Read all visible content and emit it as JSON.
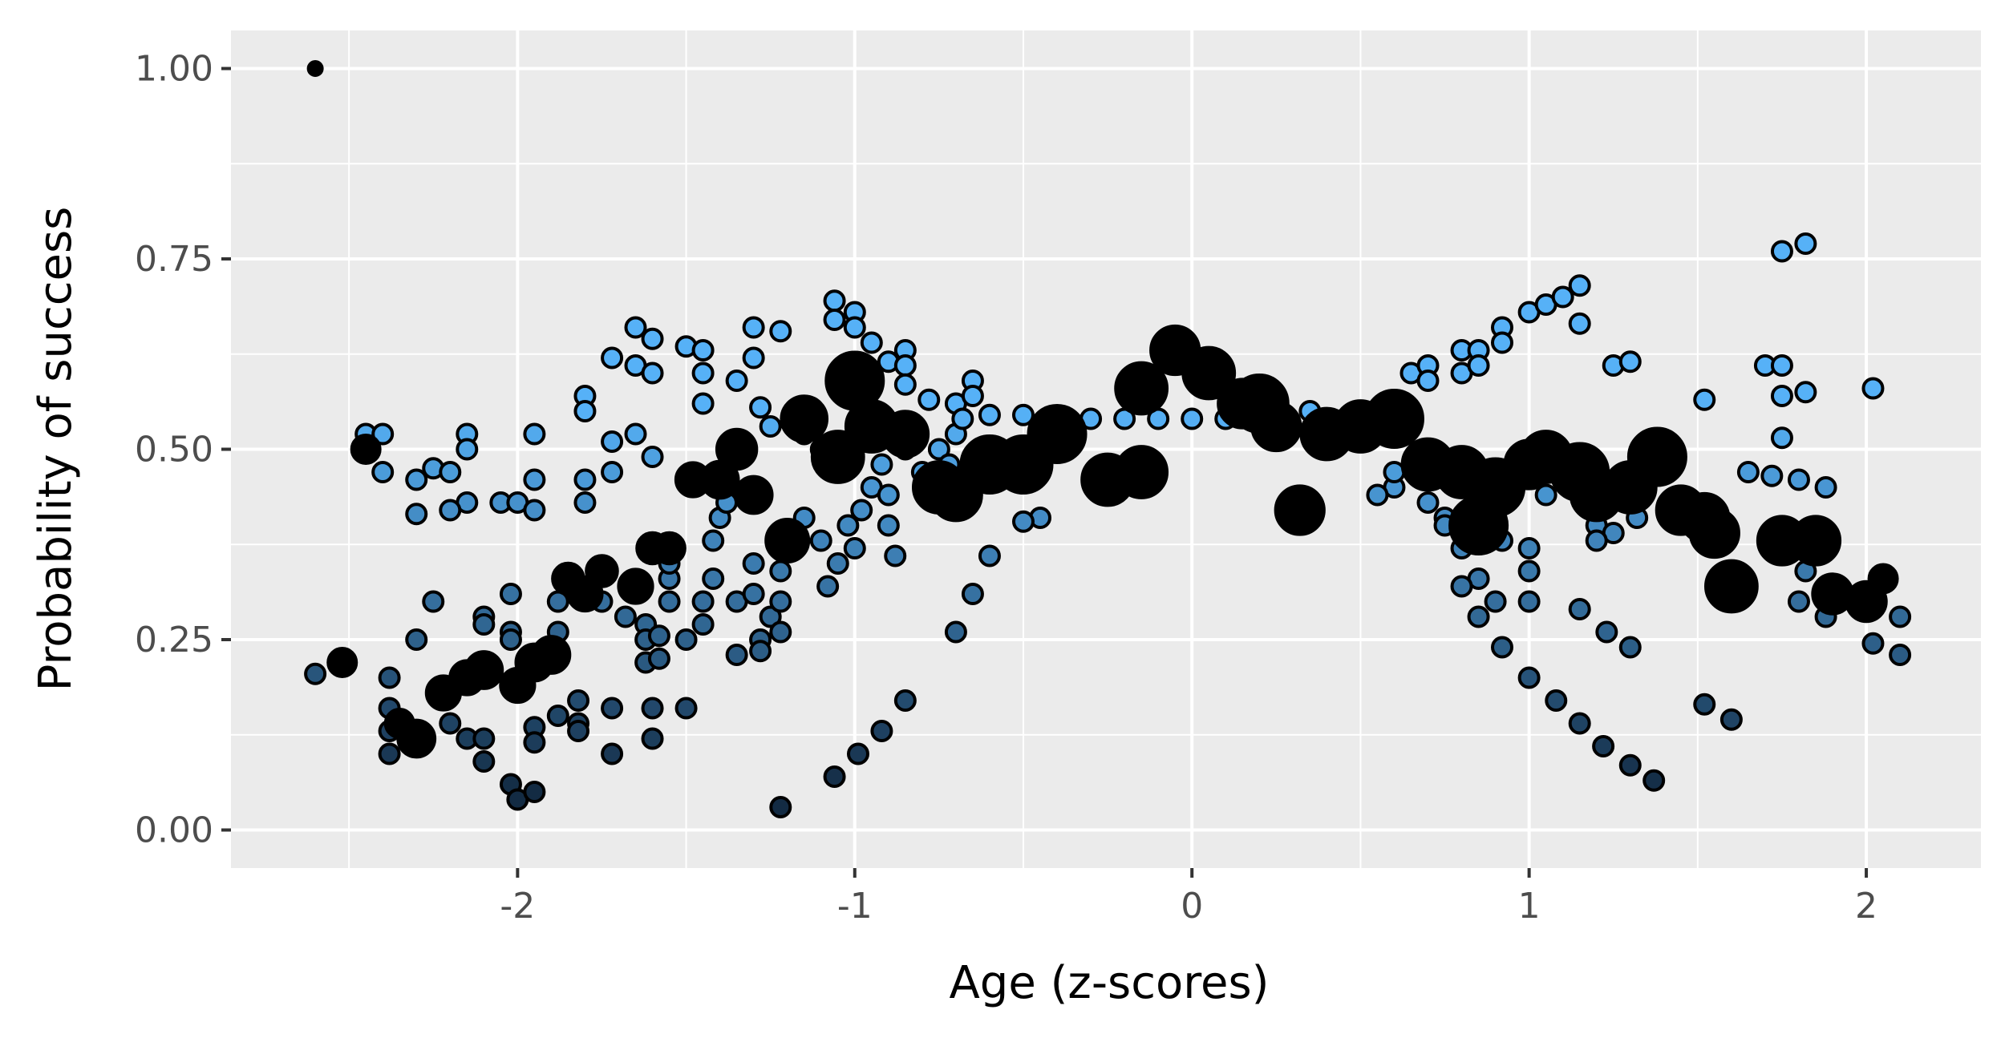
{
  "chart_data": {
    "type": "scatter",
    "title": "",
    "xlabel": "Age (z-scores)",
    "ylabel": "Probability of success",
    "xlim": [
      -2.85,
      2.34
    ],
    "ylim": [
      -0.05,
      1.05
    ],
    "x_ticks": [
      -2,
      -1,
      0,
      1,
      2
    ],
    "x_tick_labels": [
      "-2",
      "-1",
      "0",
      "1",
      "2"
    ],
    "y_ticks": [
      0,
      0.25,
      0.5,
      0.75,
      1.0
    ],
    "y_tick_labels": [
      "0.00",
      "0.25",
      "0.50",
      "0.75",
      "1.00"
    ],
    "grid": true,
    "legend": "none",
    "colors": {
      "panel_background": "#ebebeb",
      "grid": "#ffffff",
      "point_fill_high": "#56b1f7",
      "point_fill_low": "#132b43",
      "point_outline": "#000000",
      "large_points": "#000000"
    },
    "series": [
      {
        "points": [
          [
            -2.6,
            0.205
          ],
          [
            -2.45,
            0.52
          ],
          [
            -2.4,
            0.52
          ],
          [
            -2.4,
            0.47
          ],
          [
            -2.3,
            0.46
          ],
          [
            -2.3,
            0.415
          ],
          [
            -2.25,
            0.475
          ],
          [
            -2.2,
            0.47
          ],
          [
            -2.15,
            0.52
          ],
          [
            -2.15,
            0.5
          ],
          [
            -2.15,
            0.43
          ],
          [
            -2.2,
            0.42
          ],
          [
            -2.05,
            0.43
          ],
          [
            -2.0,
            0.43
          ],
          [
            -1.95,
            0.52
          ],
          [
            -1.95,
            0.46
          ],
          [
            -1.95,
            0.42
          ],
          [
            -1.8,
            0.57
          ],
          [
            -1.8,
            0.55
          ],
          [
            -1.8,
            0.46
          ],
          [
            -1.8,
            0.43
          ],
          [
            -1.72,
            0.62
          ],
          [
            -1.72,
            0.51
          ],
          [
            -1.72,
            0.47
          ],
          [
            -1.65,
            0.66
          ],
          [
            -1.65,
            0.61
          ],
          [
            -1.65,
            0.52
          ],
          [
            -1.6,
            0.645
          ],
          [
            -1.6,
            0.6
          ],
          [
            -1.6,
            0.49
          ],
          [
            -1.5,
            0.635
          ],
          [
            -1.45,
            0.63
          ],
          [
            -1.45,
            0.6
          ],
          [
            -1.45,
            0.56
          ],
          [
            -1.35,
            0.59
          ],
          [
            -1.3,
            0.66
          ],
          [
            -1.3,
            0.62
          ],
          [
            -1.22,
            0.655
          ],
          [
            -1.28,
            0.555
          ],
          [
            -1.25,
            0.53
          ],
          [
            -1.15,
            0.52
          ],
          [
            -1.1,
            0.5
          ],
          [
            -1.06,
            0.695
          ],
          [
            -1.06,
            0.67
          ],
          [
            -1.0,
            0.68
          ],
          [
            -1.0,
            0.66
          ],
          [
            -0.95,
            0.64
          ],
          [
            -0.9,
            0.615
          ],
          [
            -0.85,
            0.63
          ],
          [
            -0.85,
            0.61
          ],
          [
            -0.85,
            0.585
          ],
          [
            -0.78,
            0.565
          ],
          [
            -0.7,
            0.56
          ],
          [
            -0.65,
            0.59
          ],
          [
            -0.65,
            0.57
          ],
          [
            -0.6,
            0.545
          ],
          [
            -0.5,
            0.545
          ],
          [
            -0.4,
            0.535
          ],
          [
            -0.3,
            0.54
          ],
          [
            -0.2,
            0.54
          ],
          [
            -0.1,
            0.54
          ],
          [
            0.0,
            0.54
          ],
          [
            0.1,
            0.54
          ],
          [
            0.35,
            0.55
          ],
          [
            0.65,
            0.6
          ],
          [
            0.7,
            0.61
          ],
          [
            0.7,
            0.59
          ],
          [
            0.8,
            0.63
          ],
          [
            0.8,
            0.6
          ],
          [
            0.85,
            0.63
          ],
          [
            0.85,
            0.61
          ],
          [
            0.92,
            0.66
          ],
          [
            0.92,
            0.64
          ],
          [
            1.0,
            0.68
          ],
          [
            1.05,
            0.69
          ],
          [
            1.1,
            0.7
          ],
          [
            1.15,
            0.715
          ],
          [
            1.15,
            0.665
          ],
          [
            1.25,
            0.61
          ],
          [
            1.3,
            0.615
          ],
          [
            1.52,
            0.565
          ],
          [
            1.7,
            0.61
          ],
          [
            1.75,
            0.76
          ],
          [
            1.75,
            0.61
          ],
          [
            1.75,
            0.57
          ],
          [
            1.75,
            0.515
          ],
          [
            1.82,
            0.77
          ],
          [
            1.82,
            0.575
          ],
          [
            2.02,
            0.58
          ],
          [
            1.72,
            0.465
          ],
          [
            1.65,
            0.47
          ],
          [
            1.8,
            0.46
          ],
          [
            1.88,
            0.45
          ],
          [
            1.05,
            0.44
          ],
          [
            1.1,
            0.46
          ],
          [
            0.9,
            0.42
          ],
          [
            0.75,
            0.41
          ],
          [
            0.7,
            0.43
          ],
          [
            0.6,
            0.45
          ],
          [
            0.55,
            0.44
          ],
          [
            1.2,
            0.4
          ],
          [
            1.25,
            0.39
          ],
          [
            1.32,
            0.41
          ],
          [
            1.2,
            0.38
          ],
          [
            1.0,
            0.37
          ],
          [
            0.92,
            0.38
          ],
          [
            0.8,
            0.37
          ],
          [
            0.75,
            0.4
          ],
          [
            0.6,
            0.47
          ],
          [
            -0.45,
            0.41
          ],
          [
            -0.5,
            0.405
          ],
          [
            -0.6,
            0.36
          ]
        ]
      },
      {
        "points": [
          [
            -2.38,
            0.2
          ],
          [
            -2.38,
            0.16
          ],
          [
            -2.38,
            0.13
          ],
          [
            -2.38,
            0.1
          ],
          [
            -2.3,
            0.25
          ],
          [
            -2.25,
            0.3
          ],
          [
            -2.2,
            0.14
          ],
          [
            -2.15,
            0.12
          ],
          [
            -2.1,
            0.28
          ],
          [
            -2.1,
            0.27
          ],
          [
            -2.1,
            0.12
          ],
          [
            -2.1,
            0.09
          ],
          [
            -2.02,
            0.31
          ],
          [
            -2.02,
            0.26
          ],
          [
            -2.02,
            0.25
          ],
          [
            -2.02,
            0.06
          ],
          [
            -2.0,
            0.04
          ],
          [
            -1.95,
            0.135
          ],
          [
            -1.95,
            0.115
          ],
          [
            -1.95,
            0.05
          ],
          [
            -1.88,
            0.3
          ],
          [
            -1.88,
            0.26
          ],
          [
            -1.88,
            0.15
          ],
          [
            -1.82,
            0.17
          ],
          [
            -1.82,
            0.14
          ],
          [
            -1.82,
            0.13
          ],
          [
            -1.75,
            0.3
          ],
          [
            -1.72,
            0.16
          ],
          [
            -1.72,
            0.1
          ],
          [
            -1.68,
            0.28
          ],
          [
            -1.62,
            0.27
          ],
          [
            -1.62,
            0.25
          ],
          [
            -1.62,
            0.22
          ],
          [
            -1.6,
            0.16
          ],
          [
            -1.6,
            0.12
          ],
          [
            -1.58,
            0.255
          ],
          [
            -1.58,
            0.225
          ],
          [
            -1.55,
            0.3
          ],
          [
            -1.55,
            0.33
          ],
          [
            -1.55,
            0.35
          ],
          [
            -1.5,
            0.25
          ],
          [
            -1.5,
            0.16
          ],
          [
            -1.45,
            0.27
          ],
          [
            -1.45,
            0.3
          ],
          [
            -1.42,
            0.33
          ],
          [
            -1.42,
            0.38
          ],
          [
            -1.4,
            0.41
          ],
          [
            -1.38,
            0.43
          ],
          [
            -1.35,
            0.3
          ],
          [
            -1.35,
            0.23
          ],
          [
            -1.3,
            0.31
          ],
          [
            -1.3,
            0.35
          ],
          [
            -1.28,
            0.25
          ],
          [
            -1.28,
            0.235
          ],
          [
            -1.25,
            0.28
          ],
          [
            -1.22,
            0.26
          ],
          [
            -1.22,
            0.3
          ],
          [
            -1.22,
            0.34
          ],
          [
            -1.18,
            0.37
          ],
          [
            -1.15,
            0.41
          ],
          [
            -1.1,
            0.38
          ],
          [
            -1.08,
            0.32
          ],
          [
            -1.05,
            0.35
          ],
          [
            -1.02,
            0.4
          ],
          [
            -1.0,
            0.37
          ],
          [
            -0.98,
            0.42
          ],
          [
            -0.95,
            0.45
          ],
          [
            -0.92,
            0.48
          ],
          [
            -0.9,
            0.4
          ],
          [
            -0.9,
            0.44
          ],
          [
            -0.88,
            0.36
          ],
          [
            -0.85,
            0.5
          ],
          [
            -0.82,
            0.52
          ],
          [
            -0.8,
            0.47
          ],
          [
            -0.78,
            0.44
          ],
          [
            -0.75,
            0.5
          ],
          [
            -0.72,
            0.48
          ],
          [
            -0.7,
            0.52
          ],
          [
            -0.68,
            0.54
          ],
          [
            -0.65,
            0.31
          ],
          [
            -0.7,
            0.26
          ],
          [
            -1.22,
            0.03
          ],
          [
            -1.06,
            0.07
          ],
          [
            -0.99,
            0.1
          ],
          [
            -0.92,
            0.13
          ],
          [
            -0.85,
            0.17
          ],
          [
            0.85,
            0.33
          ],
          [
            0.9,
            0.3
          ],
          [
            0.92,
            0.24
          ],
          [
            0.85,
            0.28
          ],
          [
            1.0,
            0.3
          ],
          [
            1.0,
            0.34
          ],
          [
            1.0,
            0.2
          ],
          [
            1.08,
            0.17
          ],
          [
            1.15,
            0.14
          ],
          [
            1.22,
            0.11
          ],
          [
            1.3,
            0.085
          ],
          [
            1.37,
            0.065
          ],
          [
            1.15,
            0.29
          ],
          [
            1.23,
            0.26
          ],
          [
            1.3,
            0.24
          ],
          [
            1.52,
            0.165
          ],
          [
            1.6,
            0.145
          ],
          [
            1.88,
            0.28
          ],
          [
            1.8,
            0.3
          ],
          [
            2.02,
            0.245
          ],
          [
            2.1,
            0.23
          ],
          [
            2.1,
            0.28
          ],
          [
            1.82,
            0.34
          ],
          [
            0.8,
            0.32
          ]
        ]
      },
      {
        "points": [
          [
            -2.6,
            1.0
          ],
          [
            -2.52,
            0.22
          ],
          [
            -2.45,
            0.5
          ],
          [
            -2.35,
            0.14
          ],
          [
            -2.3,
            0.12
          ],
          [
            -2.22,
            0.18
          ],
          [
            -2.15,
            0.2
          ],
          [
            -2.1,
            0.21
          ],
          [
            -2.0,
            0.19
          ],
          [
            -1.95,
            0.22
          ],
          [
            -1.9,
            0.23
          ],
          [
            -1.85,
            0.33
          ],
          [
            -1.8,
            0.31
          ],
          [
            -1.75,
            0.34
          ],
          [
            -1.65,
            0.32
          ],
          [
            -1.6,
            0.37
          ],
          [
            -1.55,
            0.37
          ],
          [
            -1.48,
            0.46
          ],
          [
            -1.4,
            0.46
          ],
          [
            -1.35,
            0.5
          ],
          [
            -1.3,
            0.44
          ],
          [
            -1.2,
            0.38
          ],
          [
            -1.15,
            0.54
          ],
          [
            -1.05,
            0.49
          ],
          [
            -1.0,
            0.59
          ],
          [
            -0.95,
            0.53
          ],
          [
            -0.85,
            0.52
          ],
          [
            -0.75,
            0.45
          ],
          [
            -0.7,
            0.44
          ],
          [
            -0.6,
            0.48
          ],
          [
            -0.5,
            0.48
          ],
          [
            -0.4,
            0.52
          ],
          [
            -0.25,
            0.46
          ],
          [
            -0.15,
            0.47
          ],
          [
            -0.15,
            0.58
          ],
          [
            -0.05,
            0.63
          ],
          [
            0.05,
            0.6
          ],
          [
            0.15,
            0.56
          ],
          [
            0.2,
            0.56
          ],
          [
            0.25,
            0.53
          ],
          [
            0.32,
            0.42
          ],
          [
            0.4,
            0.52
          ],
          [
            0.5,
            0.53
          ],
          [
            0.6,
            0.54
          ],
          [
            0.7,
            0.48
          ],
          [
            0.8,
            0.47
          ],
          [
            0.85,
            0.4
          ],
          [
            0.9,
            0.45
          ],
          [
            1.0,
            0.48
          ],
          [
            1.05,
            0.49
          ],
          [
            1.15,
            0.47
          ],
          [
            1.2,
            0.44
          ],
          [
            1.3,
            0.45
          ],
          [
            1.38,
            0.49
          ],
          [
            1.45,
            0.42
          ],
          [
            1.52,
            0.41
          ],
          [
            1.55,
            0.39
          ],
          [
            1.6,
            0.32
          ],
          [
            1.75,
            0.38
          ],
          [
            1.85,
            0.38
          ],
          [
            1.9,
            0.31
          ],
          [
            2.0,
            0.3
          ],
          [
            2.05,
            0.33
          ]
        ],
        "sizes": [
          0.5,
          1,
          1,
          1,
          1.3,
          1.2,
          1.2,
          1.3,
          1.2,
          1.3,
          1.3,
          1.1,
          1.2,
          1.1,
          1.2,
          1.1,
          1.1,
          1.2,
          1.3,
          1.4,
          1.3,
          1.5,
          1.6,
          1.8,
          2,
          1.8,
          1.6,
          1.8,
          1.8,
          2,
          2,
          2,
          1.8,
          1.8,
          1.8,
          1.7,
          1.8,
          1.7,
          2,
          1.7,
          1.7,
          1.8,
          1.8,
          2,
          1.8,
          1.8,
          2,
          2,
          1.7,
          1.8,
          2,
          1.8,
          1.8,
          2,
          1.7,
          1.7,
          1.7,
          1.8,
          1.7,
          1.7,
          1.4,
          1.4,
          1
        ]
      }
    ]
  }
}
